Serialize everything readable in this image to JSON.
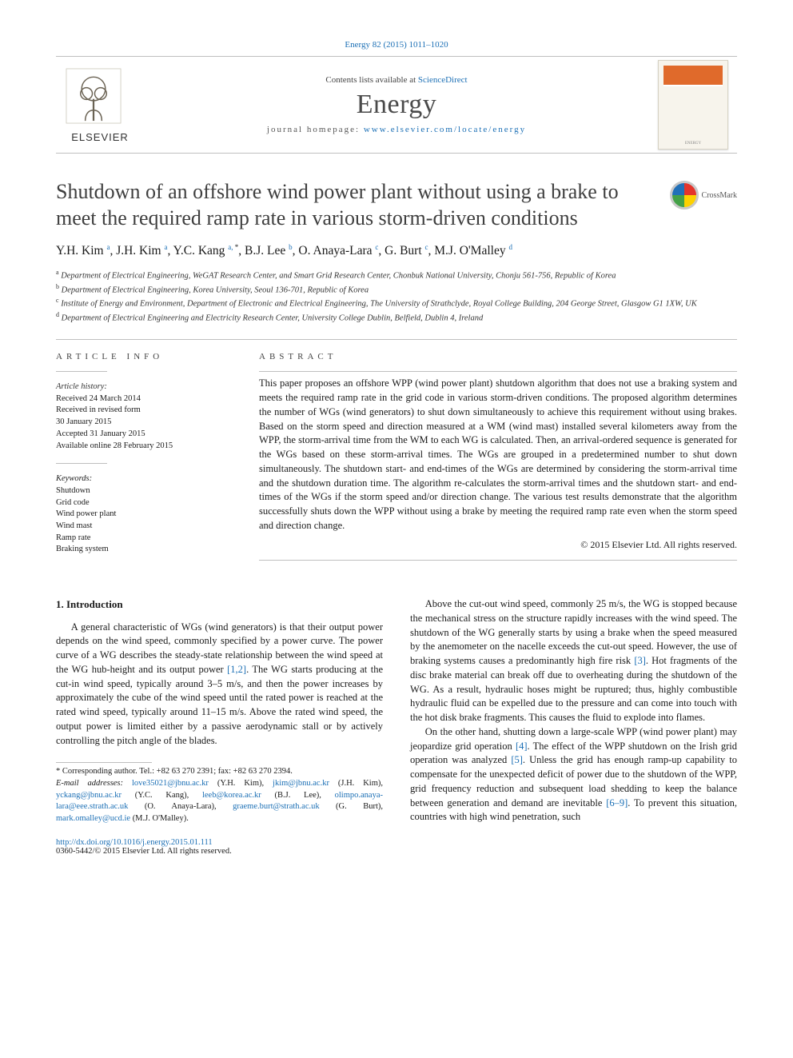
{
  "top_citation": {
    "text": "Energy 82 (2015) 1011–1020",
    "link_color": "#1b6fb5"
  },
  "banner": {
    "contents_prefix": "Contents lists available at ",
    "contents_link": "ScienceDirect",
    "journal": "Energy",
    "homepage_label": "journal homepage: ",
    "homepage_url": "www.elsevier.com/locate/energy",
    "elsevier_word": "ELSEVIER"
  },
  "crossmark_label": "CrossMark",
  "title": "Shutdown of an offshore wind power plant without using a brake to meet the required ramp rate in various storm-driven conditions",
  "authors_html": "Y.H. Kim <sup class='sup'>a</sup>, J.H. Kim <sup class='sup'>a</sup>, Y.C. Kang <sup class='sup'>a, </sup><sup class='sup sup-star'>*</sup>, B.J. Lee <sup class='sup'>b</sup>, O. Anaya-Lara <sup class='sup'>c</sup>, G. Burt <sup class='sup'>c</sup>, M.J. O'Malley <sup class='sup'>d</sup>",
  "affiliations": [
    {
      "sup": "a",
      "text": "Department of Electrical Engineering, WeGAT Research Center, and Smart Grid Research Center, Chonbuk National University, Chonju 561-756, Republic of Korea"
    },
    {
      "sup": "b",
      "text": "Department of Electrical Engineering, Korea University, Seoul 136-701, Republic of Korea"
    },
    {
      "sup": "c",
      "text": "Institute of Energy and Environment, Department of Electronic and Electrical Engineering, The University of Strathclyde, Royal College Building, 204 George Street, Glasgow G1 1XW, UK"
    },
    {
      "sup": "d",
      "text": "Department of Electrical Engineering and Electricity Research Center, University College Dublin, Belfield, Dublin 4, Ireland"
    }
  ],
  "article_info_heading": "article info",
  "abstract_heading": "abstract",
  "history_label": "Article history:",
  "history": [
    "Received 24 March 2014",
    "Received in revised form",
    "30 January 2015",
    "Accepted 31 January 2015",
    "Available online 28 February 2015"
  ],
  "keywords_label": "Keywords:",
  "keywords": [
    "Shutdown",
    "Grid code",
    "Wind power plant",
    "Wind mast",
    "Ramp rate",
    "Braking system"
  ],
  "abstract": "This paper proposes an offshore WPP (wind power plant) shutdown algorithm that does not use a braking system and meets the required ramp rate in the grid code in various storm-driven conditions. The proposed algorithm determines the number of WGs (wind generators) to shut down simultaneously to achieve this requirement without using brakes. Based on the storm speed and direction measured at a WM (wind mast) installed several kilometers away from the WPP, the storm-arrival time from the WM to each WG is calculated. Then, an arrival-ordered sequence is generated for the WGs based on these storm-arrival times. The WGs are grouped in a predetermined number to shut down simultaneously. The shutdown start- and end-times of the WGs are determined by considering the storm-arrival time and the shutdown duration time. The algorithm re-calculates the storm-arrival times and the shutdown start- and end-times of the WGs if the storm speed and/or direction change. The various test results demonstrate that the algorithm successfully shuts down the WPP without using a brake by meeting the required ramp rate even when the storm speed and direction change.",
  "copyright": "© 2015 Elsevier Ltd. All rights reserved.",
  "intro_heading": "1. Introduction",
  "intro_p1": "A general characteristic of WGs (wind generators) is that their output power depends on the wind speed, commonly specified by a power curve. The power curve of a WG describes the steady-state relationship between the wind speed at the WG hub-height and its output power ",
  "intro_p1_cite": "[1,2]",
  "intro_p1_tail": ". The WG starts producing at the cut-in wind speed, typically around 3–5 m/s, and then the power increases by approximately the cube of the wind speed until the rated power is reached at the rated wind speed, typically around 11–15 m/s. Above the rated wind speed, the output power is limited either by a passive aerodynamic stall or by actively controlling the pitch angle of the blades.",
  "intro_p2": "Above the cut-out wind speed, commonly 25 m/s, the WG is stopped because the mechanical stress on the structure rapidly increases with the wind speed. The shutdown of the WG generally starts by using a brake when the speed measured by the anemometer on the nacelle exceeds the cut-out speed. However, the use of braking systems causes a predominantly high fire risk ",
  "intro_p2_cite": "[3]",
  "intro_p2_tail": ". Hot fragments of the disc brake material can break off due to overheating during the shutdown of the WG. As a result, hydraulic hoses might be ruptured; thus, highly combustible hydraulic fluid can be expelled due to the pressure and can come into touch with the hot disk brake fragments. This causes the fluid to explode into flames.",
  "intro_p3a": "On the other hand, shutting down a large-scale WPP (wind power plant) may jeopardize grid operation ",
  "intro_p3_cite1": "[4]",
  "intro_p3b": ". The effect of the WPP shutdown on the Irish grid operation was analyzed ",
  "intro_p3_cite2": "[5]",
  "intro_p3c": ". Unless the grid has enough ramp-up capability to compensate for the unexpected deficit of power due to the shutdown of the WPP, grid frequency reduction and subsequent load shedding to keep the balance between generation and demand are inevitable ",
  "intro_p3_cite3": "[6–9]",
  "intro_p3d": ". To prevent this situation, countries with high wind penetration, such",
  "corr_line": "* Corresponding author. Tel.: +82 63 270 2391; fax: +82 63 270 2394.",
  "emails_label": "E-mail addresses: ",
  "emails": [
    {
      "mail": "love35021@jbnu.ac.kr",
      "who": " (Y.H. Kim), "
    },
    {
      "mail": "jkim@jbnu.ac.kr",
      "who": " (J.H. Kim), "
    },
    {
      "mail": "yckang@jbnu.ac.kr",
      "who": " (Y.C. Kang), "
    },
    {
      "mail": "leeb@korea.ac.kr",
      "who": " (B.J. Lee), "
    },
    {
      "mail": "olimpo.anaya-lara@eee.strath.ac.uk",
      "who": " (O. Anaya-Lara), "
    },
    {
      "mail": "graeme.burt@strath.ac.uk",
      "who": " (G. Burt), "
    },
    {
      "mail": "mark.omalley@ucd.ie",
      "who": " (M.J. O'Malley)."
    }
  ],
  "doi": "http://dx.doi.org/10.1016/j.energy.2015.01.111",
  "issn_line": "0360-5442/© 2015 Elsevier Ltd. All rights reserved.",
  "colors": {
    "link": "#1b6fb5",
    "rule": "#bfbfbf",
    "text_muted": "#4a4a4a"
  }
}
